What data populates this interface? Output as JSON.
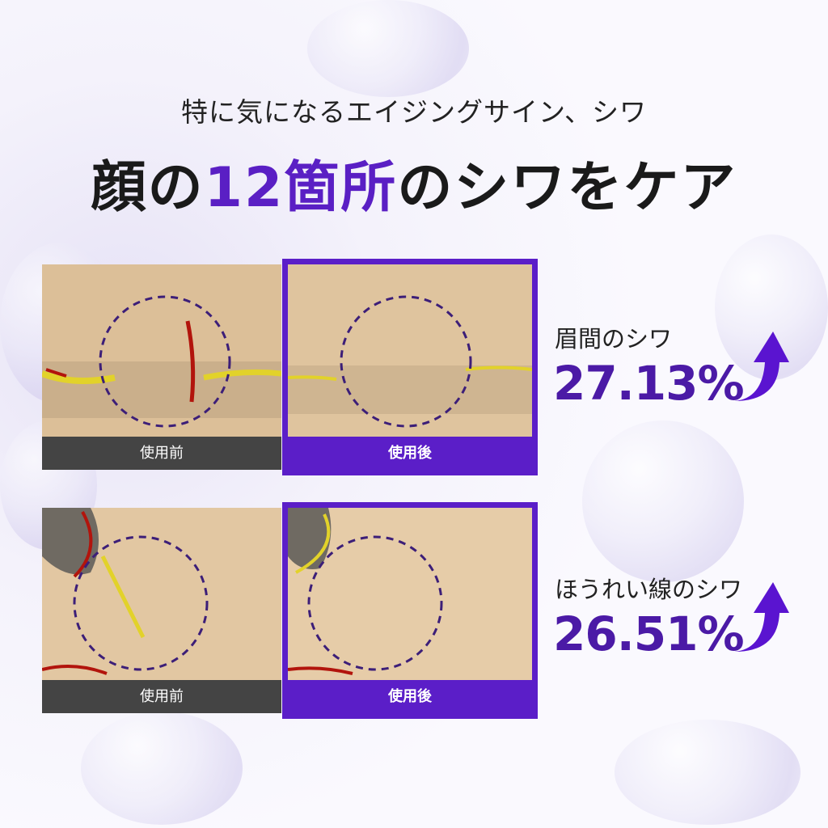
{
  "header": {
    "subtitle": "特に気になるエイジングサイン、シワ",
    "title_pre": "顔の",
    "title_highlight": "12箇所",
    "title_post": "のシワをケア"
  },
  "colors": {
    "accent": "#5b1ec8",
    "value": "#4b1aa6",
    "before_bar": "#444444"
  },
  "comparisons": [
    {
      "before_label": "使用前",
      "after_label": "使用後",
      "area": "眉間のシワ",
      "value": "27.13%",
      "icon": "arrow-up-icon"
    },
    {
      "before_label": "使用前",
      "after_label": "使用後",
      "area": "ほうれい線のシワ",
      "value": "26.51%",
      "icon": "arrow-up-icon"
    }
  ]
}
